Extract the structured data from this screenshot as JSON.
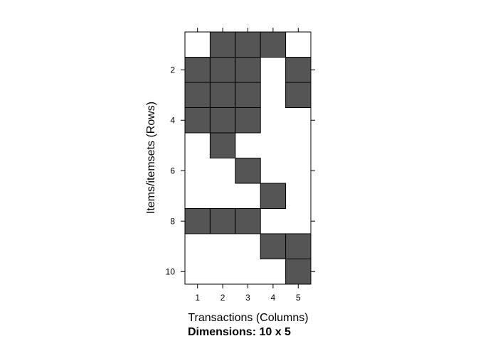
{
  "chart_data": {
    "type": "heatmap",
    "xlabel": "Transactions (Columns)",
    "ylabel": "Items/itemsets (Rows)",
    "dimensions_label": "Dimensions: 10 x 5",
    "x_ticks": [
      "1",
      "2",
      "3",
      "4",
      "5"
    ],
    "y_ticks": [
      "2",
      "4",
      "6",
      "8",
      "10"
    ],
    "n_rows": 10,
    "n_cols": 5,
    "matrix": [
      [
        0,
        1,
        1,
        1,
        0
      ],
      [
        1,
        1,
        1,
        0,
        1
      ],
      [
        1,
        1,
        1,
        0,
        1
      ],
      [
        1,
        1,
        1,
        0,
        0
      ],
      [
        0,
        1,
        0,
        0,
        0
      ],
      [
        0,
        0,
        1,
        0,
        0
      ],
      [
        0,
        0,
        0,
        1,
        0
      ],
      [
        1,
        1,
        1,
        0,
        0
      ],
      [
        0,
        0,
        0,
        1,
        1
      ],
      [
        0,
        0,
        0,
        0,
        1
      ]
    ],
    "fill_color": "#555555",
    "empty_color": "#ffffff",
    "grid": false,
    "legend": "none"
  }
}
